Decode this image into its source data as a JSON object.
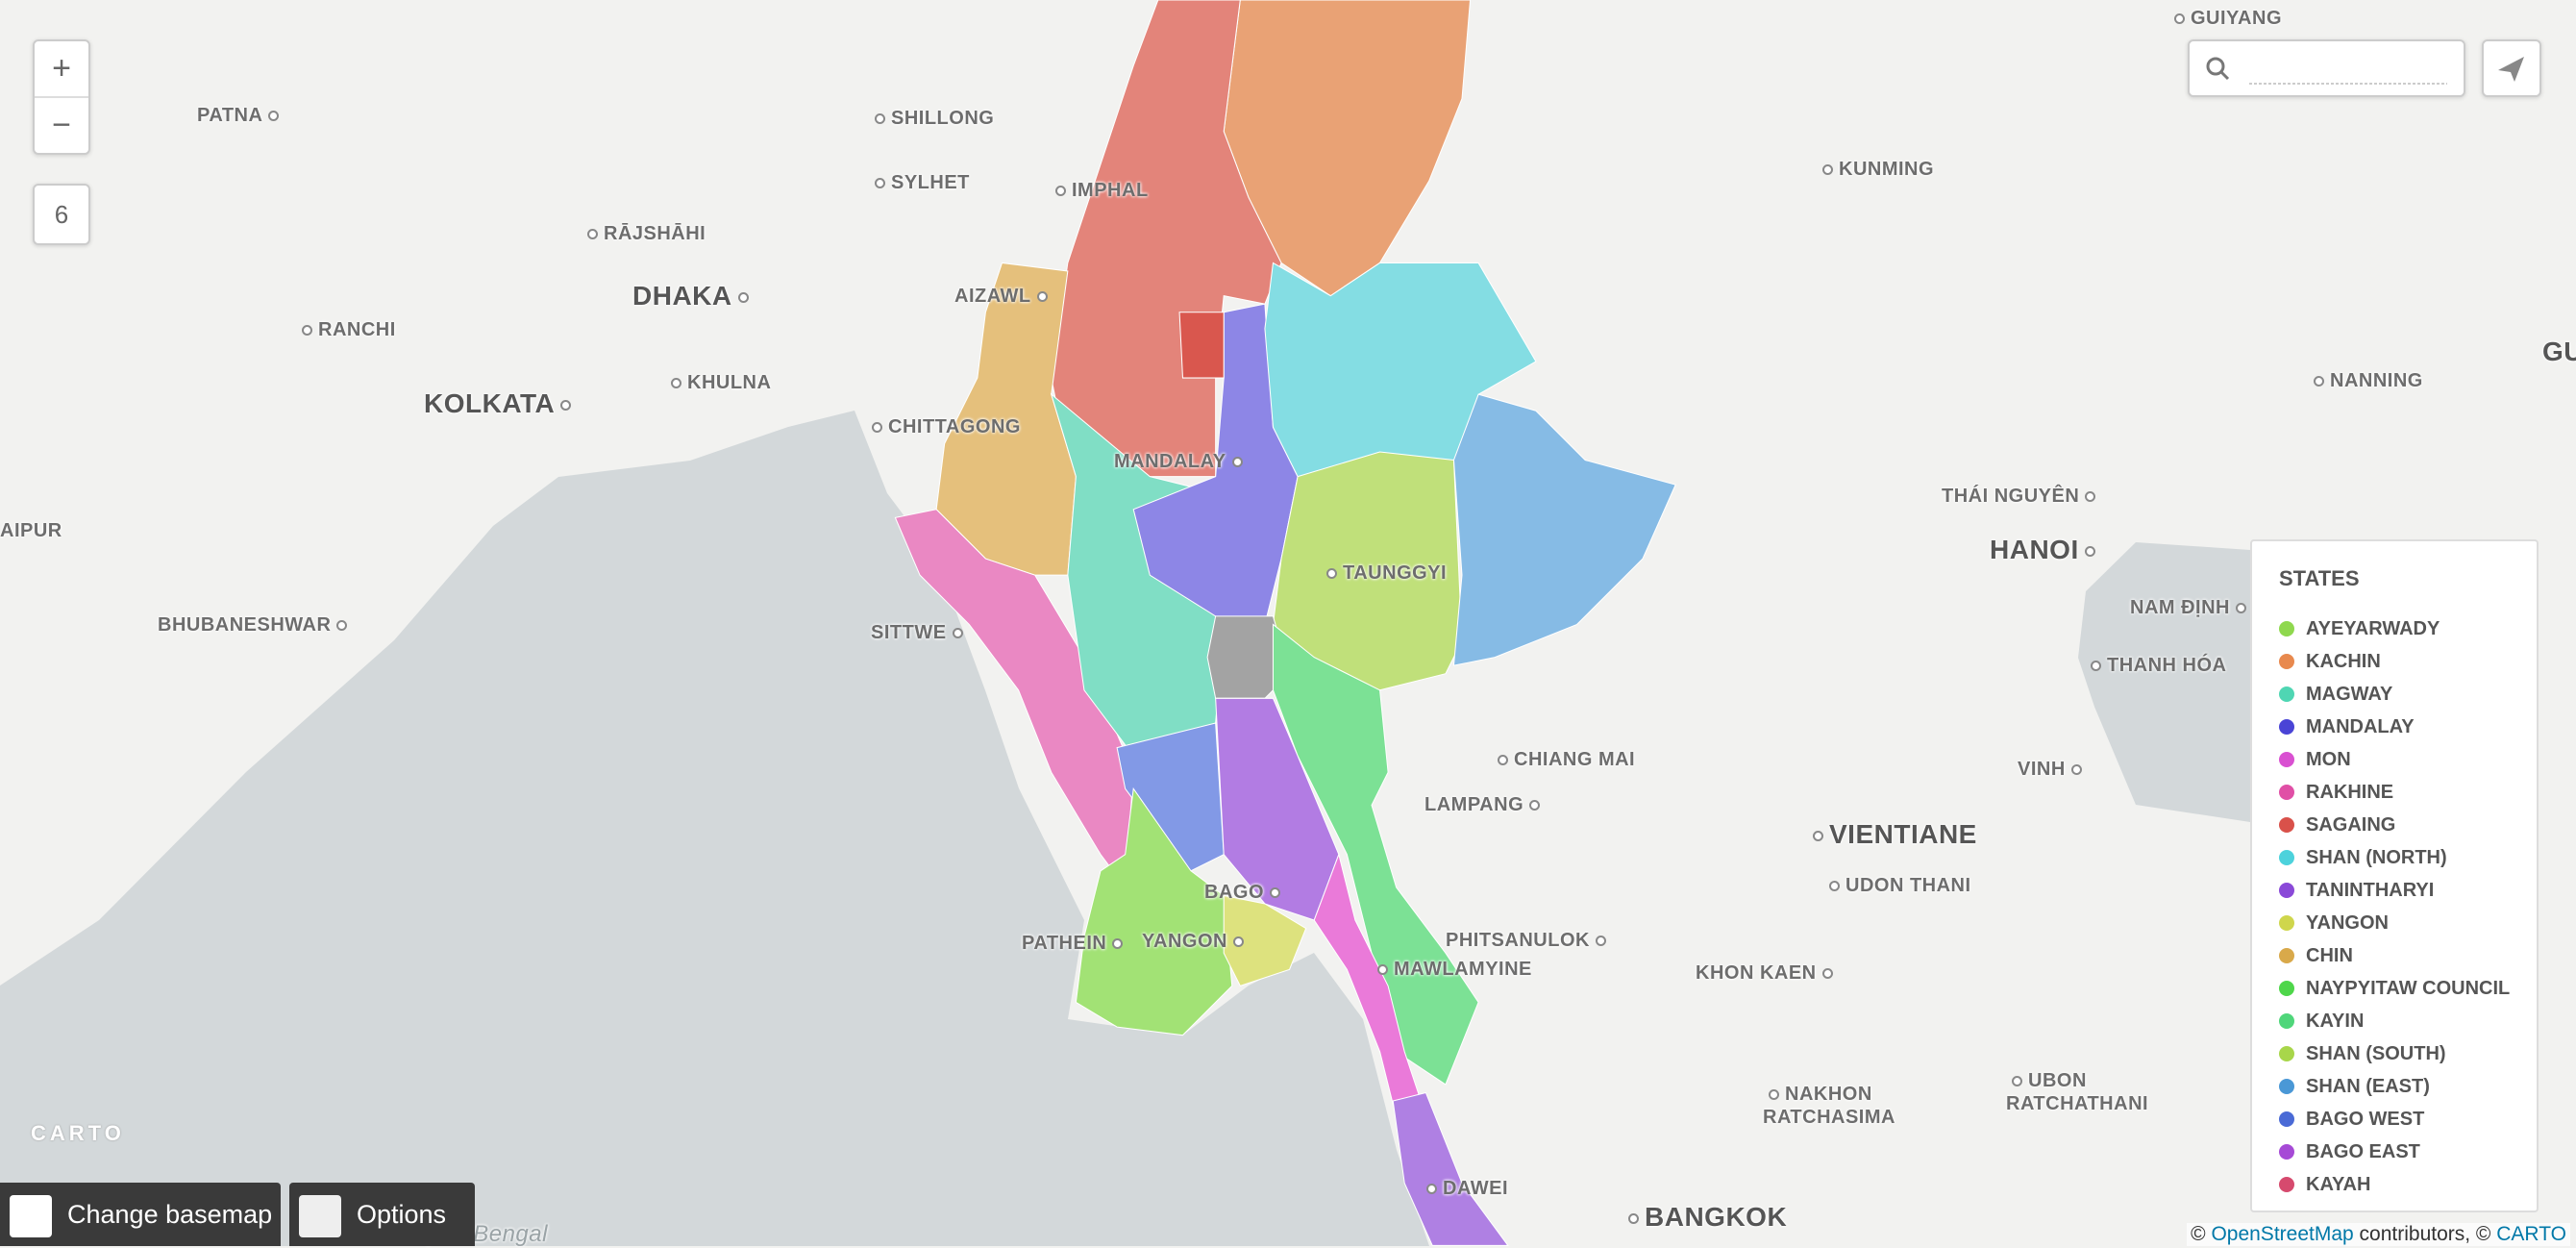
{
  "controls": {
    "zoom_in": "+",
    "zoom_out": "−",
    "zoom_level": "6"
  },
  "cities": [
    {
      "name": "GUIYANG"
    },
    {
      "name": "PATNA"
    },
    {
      "name": "SHILLONG"
    },
    {
      "name": "SYLHET"
    },
    {
      "name": "IMPHAL"
    },
    {
      "name": "KUNMING"
    },
    {
      "name": "RĀJSHĀHI"
    },
    {
      "name": "DHAKA"
    },
    {
      "name": "AIZAWL"
    },
    {
      "name": "RANCHI"
    },
    {
      "name": "KHULNA"
    },
    {
      "name": "KOLKATA"
    },
    {
      "name": "CHITTAGONG"
    },
    {
      "name": "MANDALAY"
    },
    {
      "name": "NANNING"
    },
    {
      "name": "THÁI NGUYÊN"
    },
    {
      "name": "HANOI"
    },
    {
      "name": "AIPUR"
    },
    {
      "name": "TAUNGGYI"
    },
    {
      "name": "BHUBANESHWAR"
    },
    {
      "name": "SITTWE"
    },
    {
      "name": "NAM ĐỊNH"
    },
    {
      "name": "THANH HÓA"
    },
    {
      "name": "CHIANG MAI"
    },
    {
      "name": "VINH"
    },
    {
      "name": "LAMPANG"
    },
    {
      "name": "VIENTIANE"
    },
    {
      "name": "UDON THANI"
    },
    {
      "name": "BAGO"
    },
    {
      "name": "PHITSANULOK"
    },
    {
      "name": "PATHEIN"
    },
    {
      "name": "YANGON"
    },
    {
      "name": "MAWLAMYINE"
    },
    {
      "name": "KHON KAEN"
    },
    {
      "name": "NAKHON RATCHASIMA"
    },
    {
      "name": "UBON RATCHATHANI"
    },
    {
      "name": "DAWEI"
    },
    {
      "name": "BANGKOK"
    },
    {
      "name": "GU"
    }
  ],
  "water_label": "Bay of Bengal",
  "legend": {
    "title": "STATES",
    "items": [
      {
        "label": "AYEYARWADY",
        "color": "#8fd84e"
      },
      {
        "label": "KACHIN",
        "color": "#e8894e"
      },
      {
        "label": "MAGWAY",
        "color": "#4fd6b3"
      },
      {
        "label": "MANDALAY",
        "color": "#4a44d6"
      },
      {
        "label": "MON",
        "color": "#d950d1"
      },
      {
        "label": "RAKHINE",
        "color": "#e04fa6"
      },
      {
        "label": "SAGAING",
        "color": "#d9514a"
      },
      {
        "label": "SHAN (NORTH)",
        "color": "#4dd2dc"
      },
      {
        "label": "TANINTHARYI",
        "color": "#8a49d8"
      },
      {
        "label": "YANGON",
        "color": "#cfd64c"
      },
      {
        "label": "CHIN",
        "color": "#d9a94a"
      },
      {
        "label": "NAYPYITAW COUNCIL",
        "color": "#4ed64a"
      },
      {
        "label": "KAYIN",
        "color": "#4fd67a"
      },
      {
        "label": "SHAN (SOUTH)",
        "color": "#a8d64a"
      },
      {
        "label": "SHAN (EAST)",
        "color": "#4a98d6"
      },
      {
        "label": "BAGO WEST",
        "color": "#4a6ad6"
      },
      {
        "label": "BAGO EAST",
        "color": "#a64ad6"
      },
      {
        "label": "KAYAH",
        "color": "#d64a6e"
      }
    ]
  },
  "buttons": {
    "basemap": "Change basemap",
    "options": "Options"
  },
  "logo": "CARTO",
  "attribution": {
    "prefix": "©",
    "osm": "OpenStreetMap",
    "middle": "contributors, ©",
    "carto": "CARTO"
  }
}
